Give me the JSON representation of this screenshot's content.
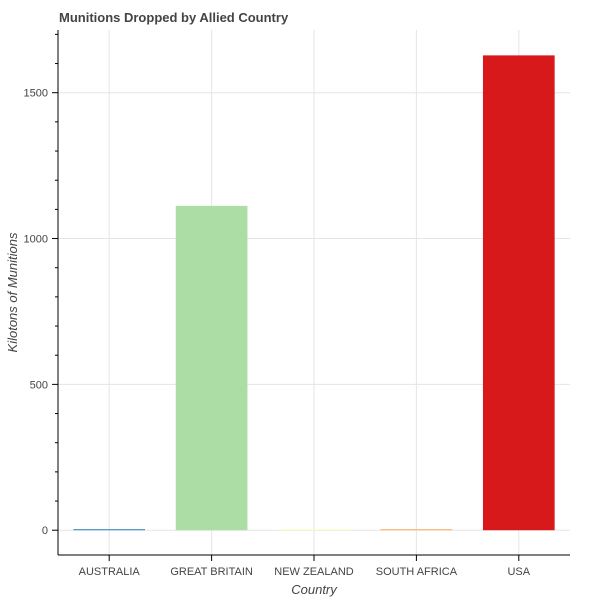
{
  "chart_data": {
    "type": "bar",
    "title": "Munitions Dropped by Allied Country",
    "xlabel": "Country",
    "ylabel": "Kilotons of Munitions",
    "categories": [
      "AUSTRALIA",
      "GREAT BRITAIN",
      "NEW ZEALAND",
      "SOUTH AFRICA",
      "USA"
    ],
    "values": [
      2,
      1112,
      1,
      1,
      1628
    ],
    "colors": [
      "#2b83ba",
      "#abdda4",
      "#ffffbf",
      "#fdae61",
      "#d7191c"
    ],
    "ylim": [
      -85,
      1715
    ],
    "yticks": [
      0,
      500,
      1000,
      1500
    ],
    "yticks_minor": [
      100,
      200,
      300,
      400,
      600,
      700,
      800,
      900,
      1100,
      1200,
      1300,
      1400,
      1600,
      1700
    ],
    "grid": true,
    "legend": "none"
  }
}
